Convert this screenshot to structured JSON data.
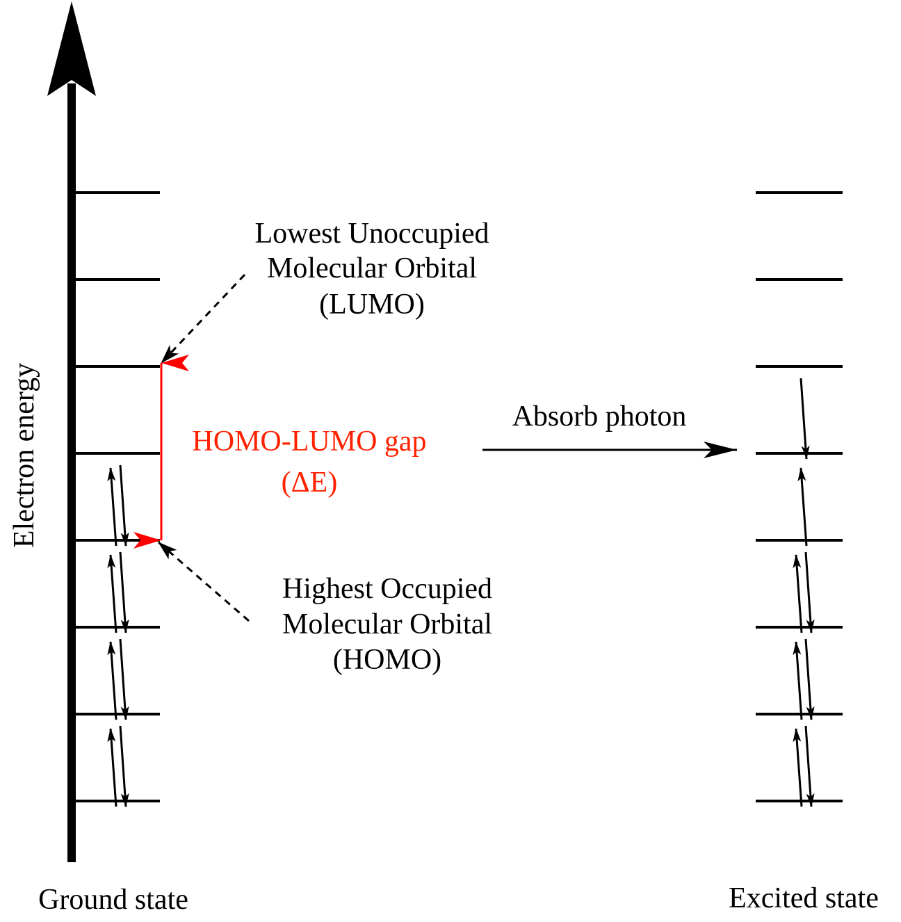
{
  "labels": {
    "axis": "Electron energy",
    "ground_state": "Ground state",
    "excited_state": "Excited state",
    "absorb_photon": "Absorb photon",
    "lumo_line1": "Lowest Unoccupied",
    "lumo_line2": "Molecular Orbital",
    "lumo_line3": "(LUMO)",
    "homo_line1": "Highest Occupied",
    "homo_line2": "Molecular Orbital",
    "homo_line3": "(HOMO)",
    "gap_line1": "HOMO-LUMO gap",
    "gap_line2": "(ΔE)"
  },
  "colors": {
    "ink": "#000000",
    "gap": "#ff0000",
    "gap_text": "#ff2200"
  },
  "orbitals": {
    "ground": [
      {
        "level": 1,
        "electrons": 2
      },
      {
        "level": 2,
        "electrons": 2
      },
      {
        "level": 3,
        "electrons": 2
      },
      {
        "level": 4,
        "electrons": 2
      },
      {
        "level": 5,
        "electrons": 0
      },
      {
        "level": 6,
        "electrons": 0
      },
      {
        "level": 7,
        "electrons": 0
      },
      {
        "level": 8,
        "electrons": 0
      }
    ],
    "excited": [
      {
        "level": 1,
        "electrons": 2
      },
      {
        "level": 2,
        "electrons": 2
      },
      {
        "level": 3,
        "electrons": 2
      },
      {
        "level": 4,
        "electrons": 1,
        "spin": "up"
      },
      {
        "level": 5,
        "electrons": 1,
        "spin": "down"
      },
      {
        "level": 6,
        "electrons": 0
      },
      {
        "level": 7,
        "electrons": 0
      },
      {
        "level": 8,
        "electrons": 0
      }
    ]
  }
}
